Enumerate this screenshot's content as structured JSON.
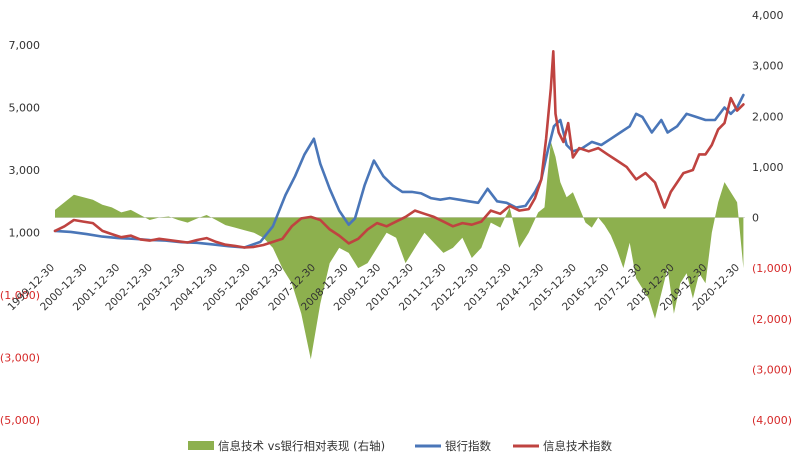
{
  "chart_data": {
    "type": "line",
    "title": "",
    "xlabel": "",
    "ylabel": "",
    "left_axis": {
      "ticks": [
        7000,
        5000,
        3000,
        1000,
        -1000,
        -3000,
        -5000
      ],
      "tick_labels": [
        "7,000",
        "5,000",
        "3,000",
        "1,000",
        "(1,000)",
        "(3,000)",
        "(5,000)"
      ],
      "ylim": [
        -6000,
        8000
      ]
    },
    "right_axis": {
      "ticks": [
        4000,
        3000,
        2000,
        1000,
        0,
        -1000,
        -2000,
        -3000,
        -4000
      ],
      "tick_labels": [
        "4,000",
        "3,000",
        "2,000",
        "1,000",
        "0",
        "(1,000)",
        "(2,000)",
        "(3,000)",
        "(4,000)"
      ],
      "ylim": [
        -4000,
        4000
      ]
    },
    "x_ticks": [
      "1999-12-30",
      "2000-12-30",
      "2001-12-30",
      "2002-12-30",
      "2003-12-30",
      "2004-12-30",
      "2005-12-30",
      "2006-12-30",
      "2007-12-30",
      "2008-12-30",
      "2009-12-30",
      "2010-12-30",
      "2011-12-30",
      "2012-12-30",
      "2013-12-30",
      "2014-12-30",
      "2015-12-30",
      "2016-12-30",
      "2017-12-30",
      "2018-12-30",
      "2019-12-30",
      "2020-12-30"
    ],
    "legend_position": "bottom",
    "series": [
      {
        "name": "信息技术 vs银行相对表现 (右轴)",
        "kind": "area",
        "axis": "right",
        "color": "#8db04e",
        "x": [
          1999.5,
          1999.8,
          2000.1,
          2000.4,
          2000.7,
          2001.0,
          2001.3,
          2001.6,
          2001.9,
          2002.2,
          2002.5,
          2002.8,
          2003.1,
          2003.4,
          2003.7,
          2004.0,
          2004.3,
          2004.6,
          2004.9,
          2005.2,
          2005.5,
          2005.8,
          2006.1,
          2006.4,
          2006.7,
          2007.0,
          2007.3,
          2007.6,
          2007.9,
          2008.2,
          2008.5,
          2008.8,
          2009.1,
          2009.4,
          2009.7,
          2010.0,
          2010.3,
          2010.6,
          2010.9,
          2011.2,
          2011.5,
          2011.8,
          2012.1,
          2012.4,
          2012.7,
          2013.0,
          2013.3,
          2013.6,
          2013.9,
          2014.2,
          2014.5,
          2014.8,
          2015.0,
          2015.2,
          2015.35,
          2015.5,
          2015.7,
          2015.9,
          2016.1,
          2016.3,
          2016.5,
          2016.7,
          2016.9,
          2017.1,
          2017.3,
          2017.5,
          2017.7,
          2017.9,
          2018.1,
          2018.3,
          2018.5,
          2018.7,
          2018.9,
          2019.1,
          2019.3,
          2019.5,
          2019.7,
          2019.9,
          2020.1,
          2020.3,
          2020.5,
          2020.7,
          2020.9,
          2021.1,
          2021.3
        ],
        "values": [
          150,
          300,
          450,
          400,
          350,
          250,
          200,
          100,
          150,
          50,
          -50,
          0,
          20,
          -50,
          -100,
          -20,
          50,
          -50,
          -150,
          -200,
          -250,
          -300,
          -400,
          -600,
          -1000,
          -1300,
          -1900,
          -2800,
          -1700,
          -900,
          -600,
          -700,
          -1000,
          -900,
          -600,
          -300,
          -400,
          -900,
          -600,
          -300,
          -500,
          -700,
          -600,
          -400,
          -800,
          -600,
          -100,
          -200,
          200,
          -600,
          -300,
          100,
          200,
          1500,
          1200,
          700,
          400,
          500,
          200,
          -100,
          -200,
          0,
          -150,
          -350,
          -650,
          -1000,
          -500,
          -1200,
          -1400,
          -1600,
          -2000,
          -1500,
          -1000,
          -1900,
          -1300,
          -1100,
          -1600,
          -1100,
          -1300,
          -300,
          300,
          700,
          500,
          300,
          -1000
        ]
      },
      {
        "name": "银行指数",
        "kind": "line",
        "axis": "left",
        "color": "#4a76b8",
        "x": [
          1999.5,
          2000.0,
          2000.5,
          2001.0,
          2001.5,
          2002.0,
          2002.5,
          2003.0,
          2003.5,
          2004.0,
          2004.5,
          2005.0,
          2005.5,
          2006.0,
          2006.4,
          2006.8,
          2007.1,
          2007.4,
          2007.7,
          2007.9,
          2008.2,
          2008.5,
          2008.8,
          2009.0,
          2009.3,
          2009.6,
          2009.9,
          2010.2,
          2010.5,
          2010.8,
          2011.1,
          2011.4,
          2011.7,
          2012.0,
          2012.3,
          2012.6,
          2012.9,
          2013.2,
          2013.5,
          2013.8,
          2014.1,
          2014.4,
          2014.7,
          2014.9,
          2015.1,
          2015.3,
          2015.5,
          2015.7,
          2015.9,
          2016.2,
          2016.5,
          2016.8,
          2017.1,
          2017.4,
          2017.7,
          2017.9,
          2018.1,
          2018.4,
          2018.7,
          2018.9,
          2019.2,
          2019.5,
          2019.8,
          2020.1,
          2020.4,
          2020.7,
          2020.9,
          2021.1,
          2021.3
        ],
        "values": [
          1050,
          1020,
          950,
          870,
          820,
          800,
          760,
          740,
          690,
          670,
          620,
          560,
          520,
          700,
          1200,
          2200,
          2800,
          3500,
          4000,
          3200,
          2400,
          1700,
          1250,
          1450,
          2500,
          3300,
          2800,
          2500,
          2300,
          2300,
          2250,
          2100,
          2050,
          2100,
          2050,
          2000,
          1950,
          2400,
          2000,
          1950,
          1800,
          1850,
          2300,
          2700,
          3600,
          4400,
          4600,
          3800,
          3600,
          3700,
          3900,
          3800,
          4000,
          4200,
          4400,
          4800,
          4700,
          4200,
          4600,
          4200,
          4400,
          4800,
          4700,
          4600,
          4600,
          5000,
          4800,
          5000,
          5400
        ]
      },
      {
        "name": "信息技术指数",
        "kind": "line",
        "axis": "left",
        "color": "#bf4340",
        "x": [
          1999.5,
          1999.8,
          2000.1,
          2000.4,
          2000.7,
          2001.0,
          2001.3,
          2001.6,
          2001.9,
          2002.2,
          2002.5,
          2002.8,
          2003.1,
          2003.4,
          2003.7,
          2004.0,
          2004.3,
          2004.6,
          2004.9,
          2005.2,
          2005.5,
          2005.8,
          2006.1,
          2006.4,
          2006.7,
          2007.0,
          2007.3,
          2007.6,
          2007.9,
          2008.2,
          2008.5,
          2008.8,
          2009.1,
          2009.4,
          2009.7,
          2010.0,
          2010.3,
          2010.6,
          2010.9,
          2011.2,
          2011.5,
          2011.8,
          2012.1,
          2012.4,
          2012.7,
          2013.0,
          2013.3,
          2013.6,
          2013.9,
          2014.2,
          2014.5,
          2014.7,
          2014.9,
          2015.05,
          2015.2,
          2015.28,
          2015.35,
          2015.45,
          2015.6,
          2015.75,
          2015.9,
          2016.1,
          2016.4,
          2016.7,
          2017.0,
          2017.3,
          2017.6,
          2017.9,
          2018.2,
          2018.5,
          2018.8,
          2019.0,
          2019.2,
          2019.4,
          2019.7,
          2019.9,
          2020.1,
          2020.3,
          2020.5,
          2020.7,
          2020.9,
          2021.1,
          2021.3
        ],
        "values": [
          1050,
          1200,
          1400,
          1350,
          1300,
          1050,
          950,
          850,
          900,
          780,
          740,
          800,
          760,
          720,
          680,
          760,
          820,
          700,
          610,
          570,
          520,
          540,
          600,
          700,
          800,
          1200,
          1450,
          1500,
          1400,
          1100,
          900,
          650,
          800,
          1100,
          1300,
          1200,
          1350,
          1500,
          1700,
          1600,
          1500,
          1350,
          1200,
          1300,
          1250,
          1350,
          1700,
          1600,
          1850,
          1700,
          1750,
          2100,
          2700,
          4000,
          5600,
          6800,
          4800,
          4200,
          3900,
          4500,
          3400,
          3700,
          3600,
          3700,
          3500,
          3300,
          3100,
          2700,
          2900,
          2600,
          1800,
          2300,
          2600,
          2900,
          3000,
          3500,
          3500,
          3800,
          4300,
          4500,
          5300,
          4900,
          5100
        ]
      }
    ]
  }
}
